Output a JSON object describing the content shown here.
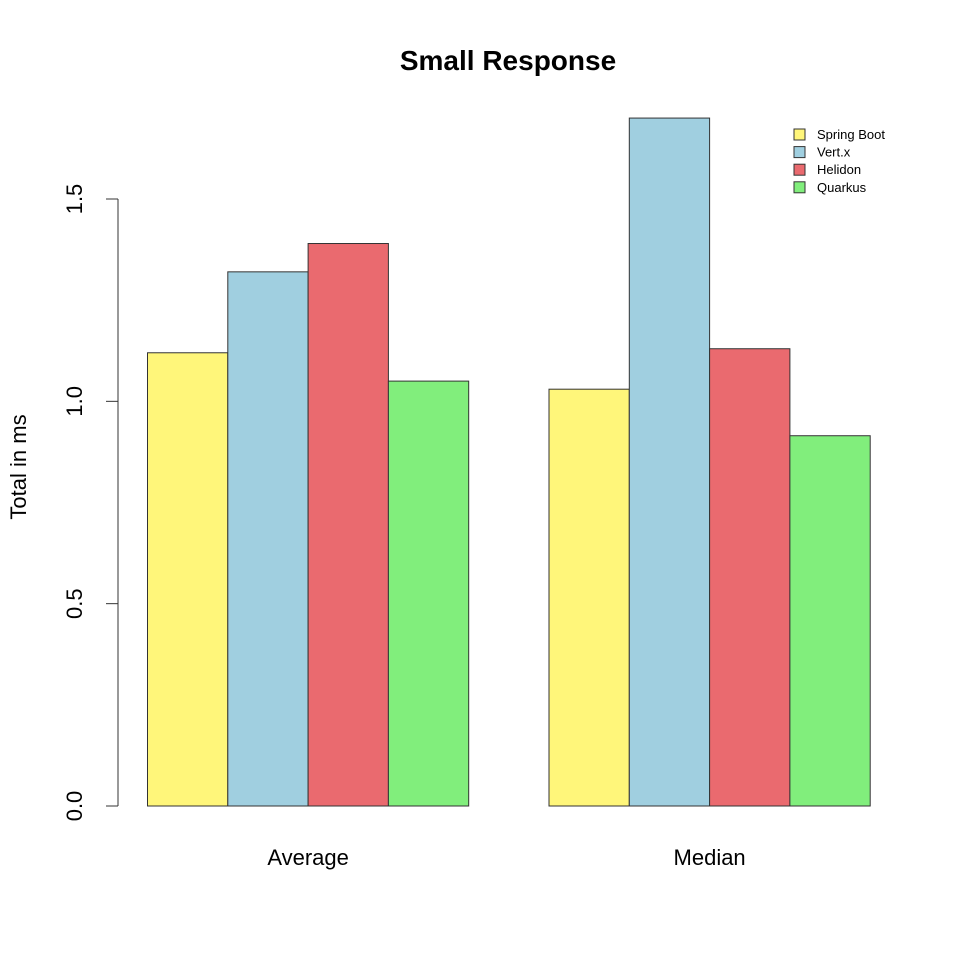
{
  "chart_data": {
    "type": "bar",
    "title": "Small Response",
    "ylabel": "Total in ms",
    "xlabel": "",
    "categories": [
      "Average",
      "Median"
    ],
    "series": [
      {
        "name": "Spring Boot",
        "color": "#FFF67A",
        "values": [
          1.12,
          1.03
        ]
      },
      {
        "name": "Vert.x",
        "color": "#A0CFE0",
        "values": [
          1.32,
          1.7
        ]
      },
      {
        "name": "Helidon",
        "color": "#EA6A6F",
        "values": [
          1.39,
          1.13
        ]
      },
      {
        "name": "Quarkus",
        "color": "#81EE7C",
        "values": [
          1.05,
          0.915
        ]
      }
    ],
    "yticks": [
      "0.0",
      "0.5",
      "1.0",
      "1.5"
    ],
    "ylim": [
      0,
      1.7
    ],
    "grid": false,
    "legend_position": "top-right"
  }
}
